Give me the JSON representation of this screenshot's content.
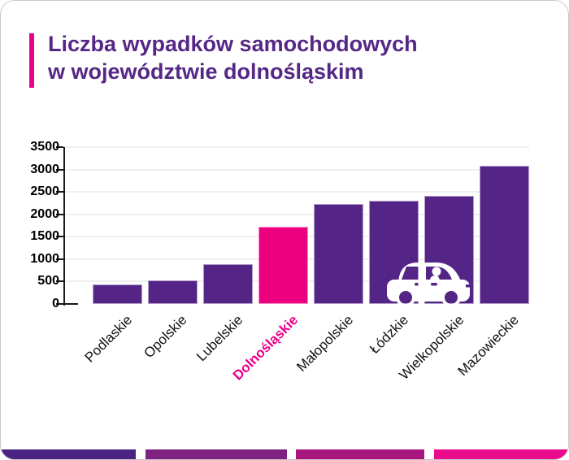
{
  "title": {
    "line1": "Liczba wypadków samochodowych",
    "line2": "w województwie dolnośląskim"
  },
  "chart_data": {
    "type": "bar",
    "title": "Liczba wypadków samochodowych w województwie dolnośląskim",
    "categories": [
      "Podlaskie",
      "Opolskie",
      "Lubelskie",
      "Dolnośląskie",
      "Małopolskie",
      "Łódzkie",
      "Wielkopolskie",
      "Mazowieckie"
    ],
    "values": [
      430,
      530,
      890,
      1730,
      2230,
      2300,
      2410,
      3080
    ],
    "highlight_category": "Dolnośląskie",
    "highlight_index": 3,
    "xlabel": "",
    "ylabel": "",
    "ylim": [
      0,
      3500
    ],
    "yticks": [
      0,
      500,
      1000,
      1500,
      2000,
      2500,
      3000,
      3500
    ],
    "grid": true,
    "legend": false
  },
  "icons": {
    "car": "white car silhouette overlapping Łódzkie and Wielkopolskie bars"
  },
  "colors": {
    "title": "#552786",
    "accent": "#EC008C",
    "bar": "#542486",
    "bar_highlight": "#EC0080",
    "x_label": "#111111",
    "x_label_highlight": "#EC008C",
    "grid": "#efefef",
    "axis": "#1a1a1a",
    "footer_stripes": [
      "#4B2483",
      "#7F2181",
      "#A8177F",
      "#EA0B8C"
    ]
  }
}
